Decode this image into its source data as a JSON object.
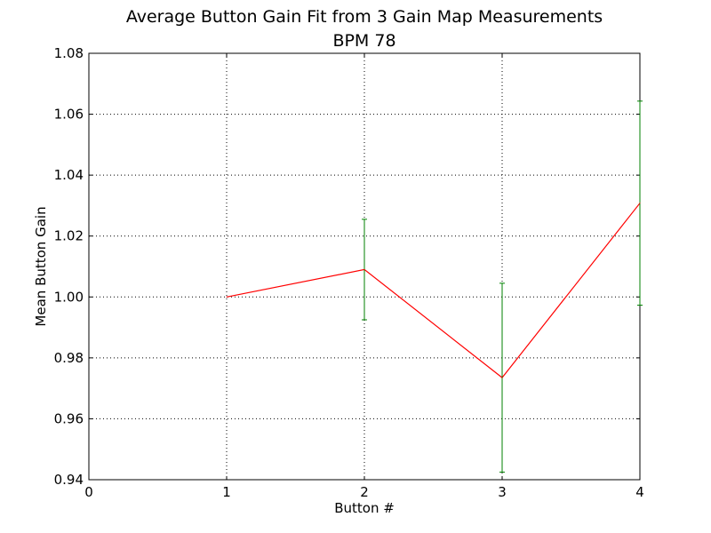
{
  "chart_data": {
    "type": "line",
    "title": "Average Button Gain Fit from 3 Gain Map Measurements",
    "subtitle": "BPM 78",
    "xlabel": "Button #",
    "ylabel": "Mean Button Gain",
    "xlim": [
      0,
      4
    ],
    "ylim": [
      0.94,
      1.08
    ],
    "xticks": [
      "0",
      "1",
      "2",
      "3",
      "4"
    ],
    "yticks": [
      "0.94",
      "0.96",
      "0.98",
      "1.00",
      "1.02",
      "1.04",
      "1.06",
      "1.08"
    ],
    "grid": true,
    "series": [
      {
        "color": "#ff0000",
        "errorbar_color": "#008000",
        "points": [
          {
            "x": 1,
            "y": 1.0,
            "err": 0.0
          },
          {
            "x": 2,
            "y": 1.009,
            "err": 0.0165
          },
          {
            "x": 3,
            "y": 0.9735,
            "err": 0.031
          },
          {
            "x": 4,
            "y": 1.0308,
            "err": 0.0335
          }
        ]
      }
    ]
  }
}
